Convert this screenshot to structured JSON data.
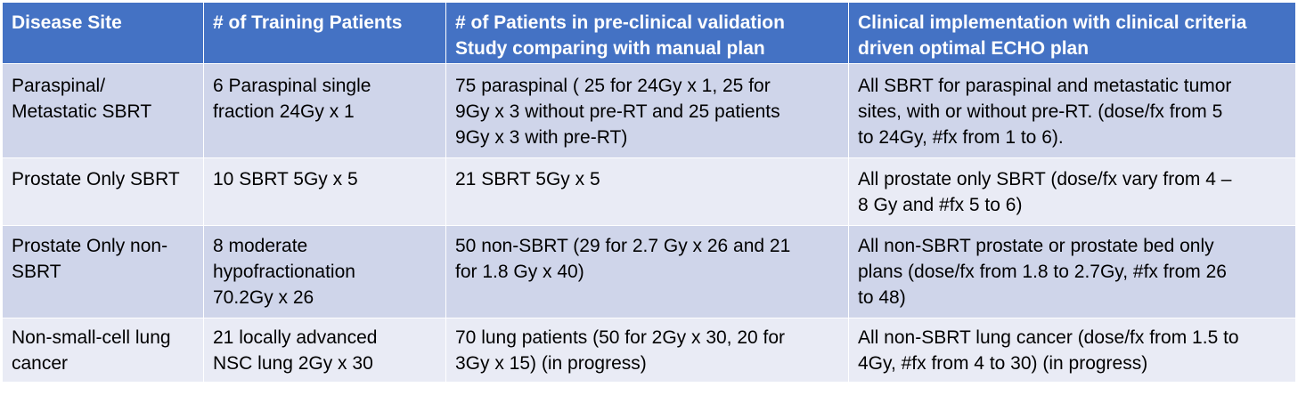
{
  "table": {
    "headers": [
      "Disease Site",
      "# of Training Patients",
      "# of Patients in pre-clinical validation\nStudy comparing with manual plan",
      "Clinical implementation with clinical criteria\ndriven optimal ECHO plan"
    ],
    "rows": [
      [
        "Paraspinal/\nMetastatic SBRT",
        "6 Paraspinal single\nfraction 24Gy x 1",
        "75 paraspinal ( 25 for 24Gy x 1, 25 for\n9Gy x 3 without pre-RT and 25 patients\n9Gy x 3 with pre-RT)",
        "All SBRT for paraspinal and metastatic tumor\nsites, with or without pre-RT. (dose/fx from 5\nto 24Gy, #fx from 1 to 6)."
      ],
      [
        "Prostate Only SBRT",
        "10 SBRT 5Gy x 5",
        "21 SBRT 5Gy x 5",
        "All prostate only SBRT (dose/fx vary from 4 –\n8 Gy and #fx 5 to 6)"
      ],
      [
        "Prostate Only non-\nSBRT",
        "8 moderate\nhypofractionation\n70.2Gy x 26",
        "50 non-SBRT (29 for 2.7 Gy x 26 and 21\nfor 1.8 Gy x 40)",
        "All non-SBRT prostate or prostate bed only\nplans (dose/fx from 1.8 to 2.7Gy, #fx from 26\nto 48)"
      ],
      [
        "Non-small-cell lung\ncancer",
        "21 locally advanced\nNSC lung 2Gy x 30",
        "70 lung patients (50 for 2Gy x 30, 20 for\n3Gy x 15) (in progress)",
        "All non-SBRT lung cancer (dose/fx from 1.5 to\n4Gy, #fx from 4 to 30) (in progress)"
      ]
    ]
  },
  "colors": {
    "header_bg": "#4472c4",
    "row_odd_bg": "#cfd5ea",
    "row_even_bg": "#e9ebf5",
    "border": "#ffffff"
  }
}
